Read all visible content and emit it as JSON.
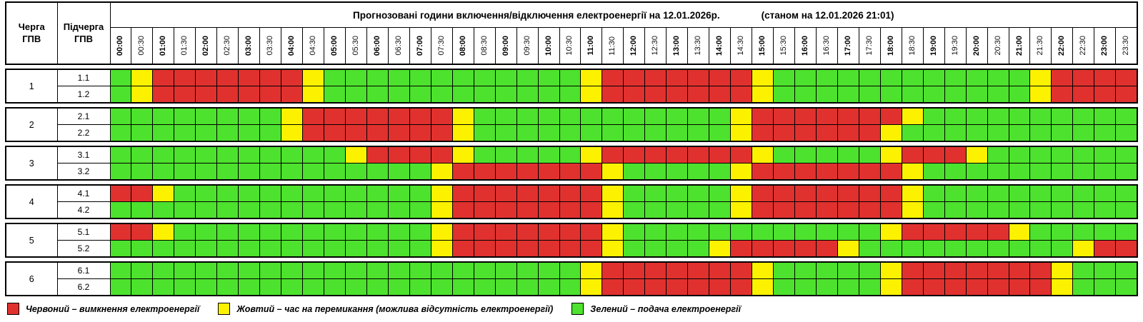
{
  "header": {
    "col1": "Черга\nГПВ",
    "col2": "Підчерга\nГПВ",
    "title_main": "Прогнозовані години включення/відключення електроенергії на 12.01.2026р.",
    "title_note": "(станом на 12.01.2026 21:01)",
    "times": [
      "00:00",
      "00:30",
      "01:00",
      "01:30",
      "02:00",
      "02:30",
      "03:00",
      "03:30",
      "04:00",
      "04:30",
      "05:00",
      "05:30",
      "06:00",
      "06:30",
      "07:00",
      "07:30",
      "08:00",
      "08:30",
      "09:00",
      "09:30",
      "10:00",
      "10:30",
      "11:00",
      "11:30",
      "12:00",
      "12:30",
      "13:00",
      "13:30",
      "14:00",
      "14:30",
      "15:00",
      "15:30",
      "16:00",
      "16:30",
      "17:00",
      "17:30",
      "18:00",
      "18:30",
      "19:00",
      "19:30",
      "20:00",
      "20:30",
      "21:00",
      "21:30",
      "22:00",
      "22:30",
      "23:00",
      "23:30"
    ]
  },
  "colors": {
    "R": "#e0312f",
    "Y": "#fcf200",
    "G": "#4de22d"
  },
  "groups": [
    {
      "queue": "1",
      "rows": [
        {
          "label": "1.1",
          "cells": "GYRRRRRRRYGGGGGGGGGGGGYRRRRRRRYGGGGGGGGGGGGYRRRR"
        },
        {
          "label": "1.2",
          "cells": "GYRRRRRRRYGGGGGGGGGGGGYRRRRRRRYGGGGGGGGGGGGYRRRR"
        }
      ]
    },
    {
      "queue": "2",
      "rows": [
        {
          "label": "2.1",
          "cells": "GGGGGGGGYRRRRRRRYGGGGGGGGGGGGYRRRRRRRYGGGGGGGGGG"
        },
        {
          "label": "2.2",
          "cells": "GGGGGGGGYRRRRRRRYGGGGGGGGGGGGYRRRRRRYGGGGGGGGGGG"
        }
      ]
    },
    {
      "queue": "3",
      "rows": [
        {
          "label": "3.1",
          "cells": "GGGGGGGGGGGYRRRRYGGGGGYRRRRRRRYGGGGGYRRRYGGGGGGG"
        },
        {
          "label": "3.2",
          "cells": "GGGGGGGGGGGGGGGYRRRRRRRYGGGGGYRRRRRRRYGGGGGGGGGG"
        }
      ]
    },
    {
      "queue": "4",
      "rows": [
        {
          "label": "4.1",
          "cells": "RRYGGGGGGGGGGGGYRRRRRRRYGGGGGYRRRRRRRYGGGGGGGGGG"
        },
        {
          "label": "4.2",
          "cells": "GGGGGGGGGGGGGGGYRRRRRRRYGGGGGYRRRRRRRYGGGGGGGGGG"
        }
      ]
    },
    {
      "queue": "5",
      "rows": [
        {
          "label": "5.1",
          "cells": "RRYGGGGGGGGGGGGYRRRRRRRYGGGGGGGGGGGGYRRRRRYGGGGG"
        },
        {
          "label": "5.2",
          "cells": "GGGGGGGGGGGGGGGYRRRRRRRYGGGGYRRRRRYGGGGGGGGGGYRR"
        }
      ]
    },
    {
      "queue": "6",
      "rows": [
        {
          "label": "6.1",
          "cells": "GGGGGGGGGGGGGGGGGGGGGGYRRRRRRRYGGGGGYRRRRRRRYGGG"
        },
        {
          "label": "6.2",
          "cells": "GGGGGGGGGGGGGGGGGGGGGGYRRRRRRRYGGGGGYRRRRRRRYGGG"
        }
      ]
    }
  ],
  "legend": [
    {
      "color_key": "R",
      "text": "Червоний – вимкнення електроенергії"
    },
    {
      "color_key": "Y",
      "text": "Жовтий – час на перемикання (можлива відсутність електроенергії)"
    },
    {
      "color_key": "G",
      "text": "Зелений – подача електроенергії"
    }
  ]
}
